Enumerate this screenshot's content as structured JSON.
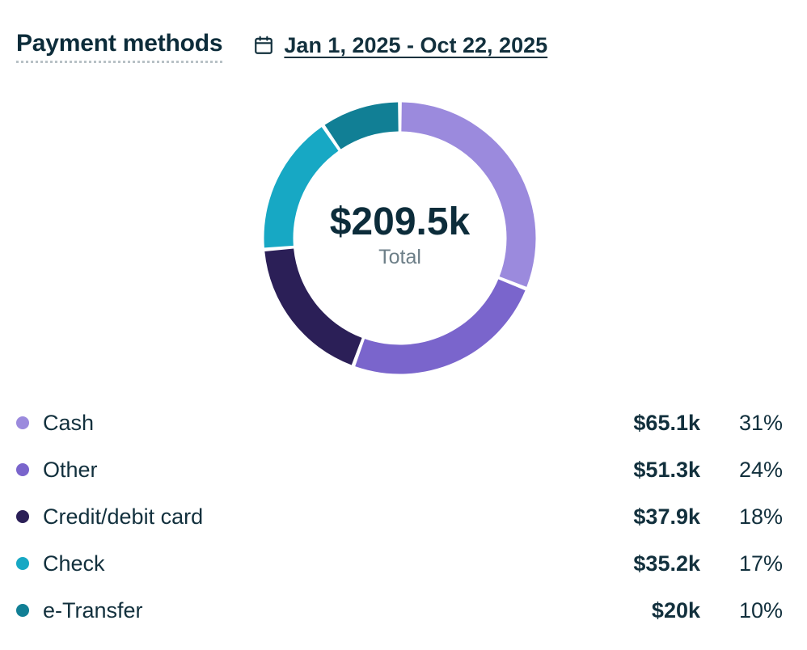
{
  "header": {
    "title": "Payment methods",
    "date_range": "Jan 1, 2025 - Oct 22, 2025",
    "calendar_icon": "calendar-icon"
  },
  "chart_data": {
    "type": "pie",
    "variant": "donut",
    "title": "Payment methods",
    "center_value": "$209.5k",
    "center_caption": "Total",
    "categories": [
      "Cash",
      "Other",
      "Credit/debit card",
      "Check",
      "e-Transfer"
    ],
    "values": [
      65.1,
      51.3,
      37.9,
      35.2,
      20
    ],
    "value_labels": [
      "$65.1k",
      "$51.3k",
      "$37.9k",
      "$35.2k",
      "$20k"
    ],
    "percent_labels": [
      "31%",
      "24%",
      "18%",
      "17%",
      "10%"
    ],
    "colors": [
      "#9b8add",
      "#7a65cc",
      "#2b1f57",
      "#17a8c4",
      "#117f95"
    ],
    "legend_position": "bottom"
  }
}
